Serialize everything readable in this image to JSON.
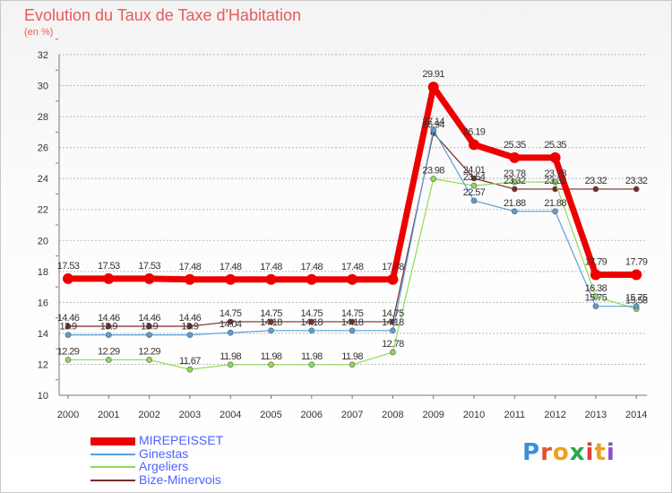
{
  "title": "Evolution du Taux de Taxe d'Habitation",
  "subtitle": "(en %)",
  "logo": {
    "text": "Proxiti",
    "colors": [
      "#3a8fd8",
      "#e0542f",
      "#f0a020",
      "#2aa84a",
      "#e33a3a",
      "#f0a020",
      "#8a4fd0"
    ]
  },
  "colors": {
    "grid": "#b9b9b9",
    "axis": "#777777",
    "tick_mark": "#e05050",
    "value_label": "#333333"
  },
  "chart_data": {
    "type": "line",
    "title": "Evolution du Taux de Taxe d'Habitation",
    "ylabel": "(en %)",
    "xlabel": "",
    "x": [
      "2000",
      "2001",
      "2002",
      "2003",
      "2004",
      "2005",
      "2006",
      "2007",
      "2008",
      "2009",
      "2010",
      "2011",
      "2012",
      "2013",
      "2014"
    ],
    "ylim": [
      10,
      32
    ],
    "yticks": [
      "10",
      "12",
      "14",
      "16",
      "18",
      "20",
      "22",
      "24",
      "26",
      "28",
      "30",
      "32"
    ],
    "grid": "horizontal",
    "legend_position": "bottom-left",
    "series": [
      {
        "name": "Bize-Minervois",
        "color": "#7a2a2a",
        "width": 1.2,
        "marker": 3,
        "values": [
          14.46,
          14.46,
          14.46,
          14.46,
          14.75,
          14.75,
          14.75,
          14.75,
          14.75,
          26.94,
          24.01,
          23.32,
          23.32,
          23.32,
          23.32
        ],
        "labels": [
          "14.46",
          "14.46",
          "14.46",
          "14.46",
          "14.75",
          "14.75",
          "14.75",
          "14.75",
          "14.75",
          "26.94",
          "24.01",
          "23.32",
          "23.32",
          "23.32",
          "23.32"
        ],
        "show_labels": [
          true,
          true,
          true,
          true,
          true,
          true,
          true,
          true,
          true,
          true,
          true,
          true,
          true,
          true,
          true
        ]
      },
      {
        "name": "Argeliers",
        "color": "#8edc55",
        "width": 1.2,
        "marker": 3,
        "values": [
          12.29,
          12.29,
          12.29,
          11.67,
          11.98,
          11.98,
          11.98,
          11.98,
          12.78,
          23.98,
          23.54,
          23.78,
          23.78,
          16.38,
          15.58
        ],
        "labels": [
          "12.29",
          "12.29",
          "12.29",
          "11.67",
          "11.98",
          "11.98",
          "11.98",
          "11.98",
          "12.78",
          "23.98",
          "23.54",
          "23.78",
          "23.78",
          "16.38",
          "15.58"
        ],
        "show_labels": [
          true,
          true,
          true,
          true,
          true,
          true,
          true,
          true,
          true,
          true,
          true,
          true,
          true,
          true,
          true
        ]
      },
      {
        "name": "Ginestas",
        "color": "#5aa0d8",
        "width": 1.2,
        "marker": 3,
        "values": [
          13.9,
          13.9,
          13.9,
          13.9,
          14.04,
          14.18,
          14.18,
          14.18,
          14.18,
          27.14,
          22.57,
          21.88,
          21.88,
          15.75,
          15.75
        ],
        "labels": [
          "13.9",
          "13.9",
          "13.9",
          "13.9",
          "14.04",
          "14.18",
          "14.18",
          "14.18",
          "14.18",
          "27.14",
          "22.57",
          "21.88",
          "21.88",
          "15.75",
          "15.75"
        ],
        "show_labels": [
          true,
          true,
          true,
          true,
          true,
          true,
          true,
          true,
          true,
          true,
          true,
          true,
          true,
          true,
          true
        ]
      },
      {
        "name": "MIREPEISSET",
        "color": "#ee0000",
        "width": 7,
        "marker": 6,
        "values": [
          17.53,
          17.53,
          17.53,
          17.48,
          17.48,
          17.48,
          17.48,
          17.48,
          17.48,
          29.91,
          26.19,
          25.35,
          25.35,
          17.79,
          17.79
        ],
        "labels": [
          "17.53",
          "17.53",
          "17.53",
          "17.48",
          "17.48",
          "17.48",
          "17.48",
          "17.48",
          "17.48",
          "29.91",
          "26.19",
          "25.35",
          "25.35",
          "17.79",
          "17.79"
        ],
        "show_labels": [
          true,
          true,
          true,
          true,
          true,
          true,
          true,
          true,
          true,
          true,
          true,
          true,
          true,
          true,
          true
        ]
      }
    ],
    "legend": [
      {
        "name": "MIREPEISSET",
        "color": "#ee0000",
        "thick": true
      },
      {
        "name": "Ginestas",
        "color": "#5aa0d8",
        "thick": false
      },
      {
        "name": "Argeliers",
        "color": "#8edc55",
        "thick": false
      },
      {
        "name": "Bize-Minervois",
        "color": "#7a2a2a",
        "thick": false
      }
    ]
  }
}
